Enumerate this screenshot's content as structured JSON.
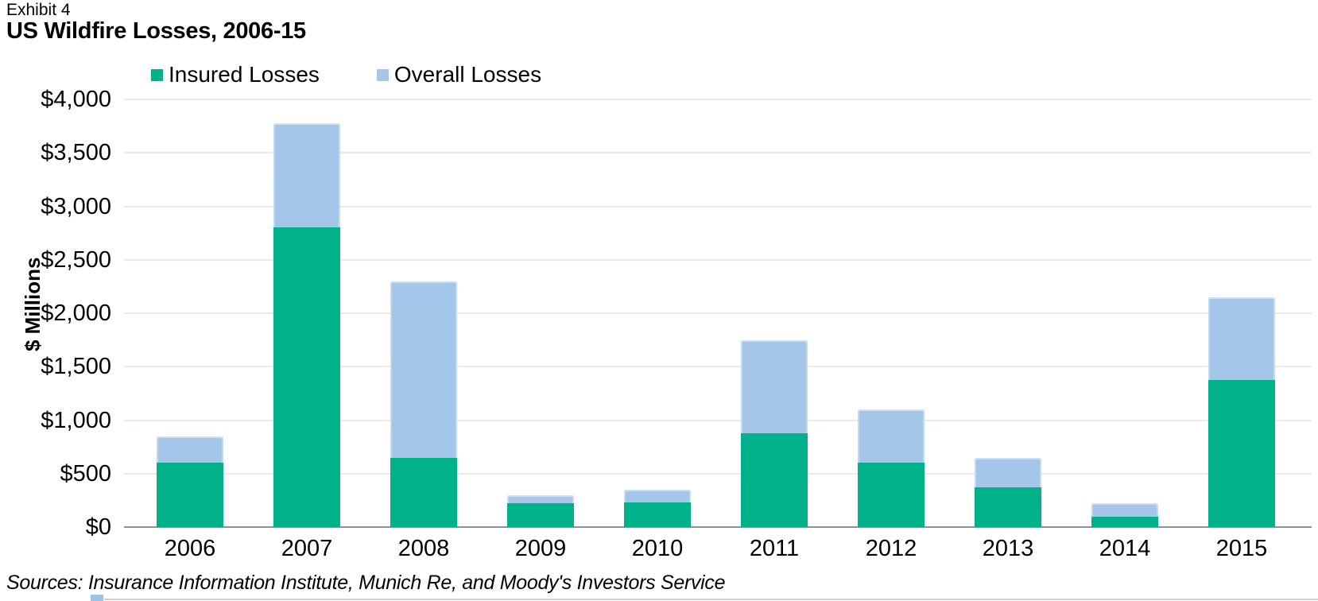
{
  "exhibit_label": "Exhibit 4",
  "title": "US Wildfire Losses, 2006-15",
  "legend": {
    "items": [
      {
        "label": "Insured Losses",
        "color": "#00B189"
      },
      {
        "label": "Overall Losses",
        "color": "#A3C6E9"
      }
    ]
  },
  "y_axis": {
    "title": "$ Millions",
    "tick_labels": [
      "$0",
      "$500",
      "$1,000",
      "$1,500",
      "$2,000",
      "$2,500",
      "$3,000",
      "$3,500",
      "$4,000"
    ],
    "tick_values": [
      0,
      500,
      1000,
      1500,
      2000,
      2500,
      3000,
      3500,
      4000
    ]
  },
  "source_note": "Sources: Insurance Information Institute, Munich Re, and Moody's Investors Service",
  "colors": {
    "insured": "#00B189",
    "overall": "#A3C6E9",
    "gridline": "#EDEAE6",
    "axis_line": "#90909A",
    "partial_bottom_square": "#9DC3E6"
  },
  "chart_data": {
    "type": "bar",
    "stacked": true,
    "title": "US Wildfire Losses, 2006-15",
    "xlabel": "",
    "ylabel": "$ Millions",
    "ylim": [
      0,
      4000
    ],
    "grid": true,
    "legend_position": "top-left",
    "categories": [
      "2006",
      "2007",
      "2008",
      "2009",
      "2010",
      "2011",
      "2012",
      "2013",
      "2014",
      "2015"
    ],
    "series": [
      {
        "name": "Insured Losses",
        "color": "#00B189",
        "values": [
          600,
          2800,
          650,
          225,
          230,
          875,
          600,
          375,
          100,
          1375
        ]
      },
      {
        "name": "Overall Losses",
        "color": "#A3C6E9",
        "values": [
          850,
          3775,
          2300,
          300,
          350,
          1750,
          1100,
          650,
          225,
          2150
        ]
      }
    ],
    "series_note": "Overall Losses values are total bar heights; the blue segment drawn equals overall minus insured, stacked on top of the green insured segment."
  }
}
